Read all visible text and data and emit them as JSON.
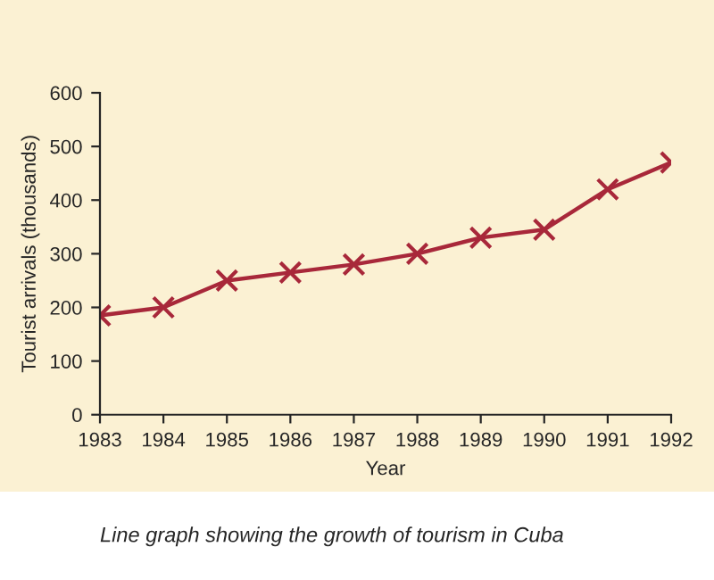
{
  "chart_data": {
    "type": "line",
    "xlabel": "Year",
    "ylabel": "Tourist arrivals (thousands)",
    "x": [
      1983,
      1984,
      1985,
      1986,
      1987,
      1988,
      1989,
      1990,
      1991,
      1992
    ],
    "series": [
      {
        "color": "#a8283a",
        "values": [
          185,
          200,
          250,
          265,
          280,
          300,
          330,
          345,
          420,
          470
        ]
      }
    ],
    "xlim": [
      1983,
      1992
    ],
    "xticks": [
      1983,
      1984,
      1985,
      1986,
      1987,
      1988,
      1989,
      1990,
      1991,
      1992
    ],
    "ylim": [
      0,
      600
    ],
    "yticks": [
      0,
      100,
      200,
      300,
      400,
      500,
      600
    ],
    "marker": "cross",
    "line_style": "solid",
    "grid": false,
    "legend": false,
    "annotations": [
      "Line graph showing the growth of tourism in Cuba"
    ]
  }
}
